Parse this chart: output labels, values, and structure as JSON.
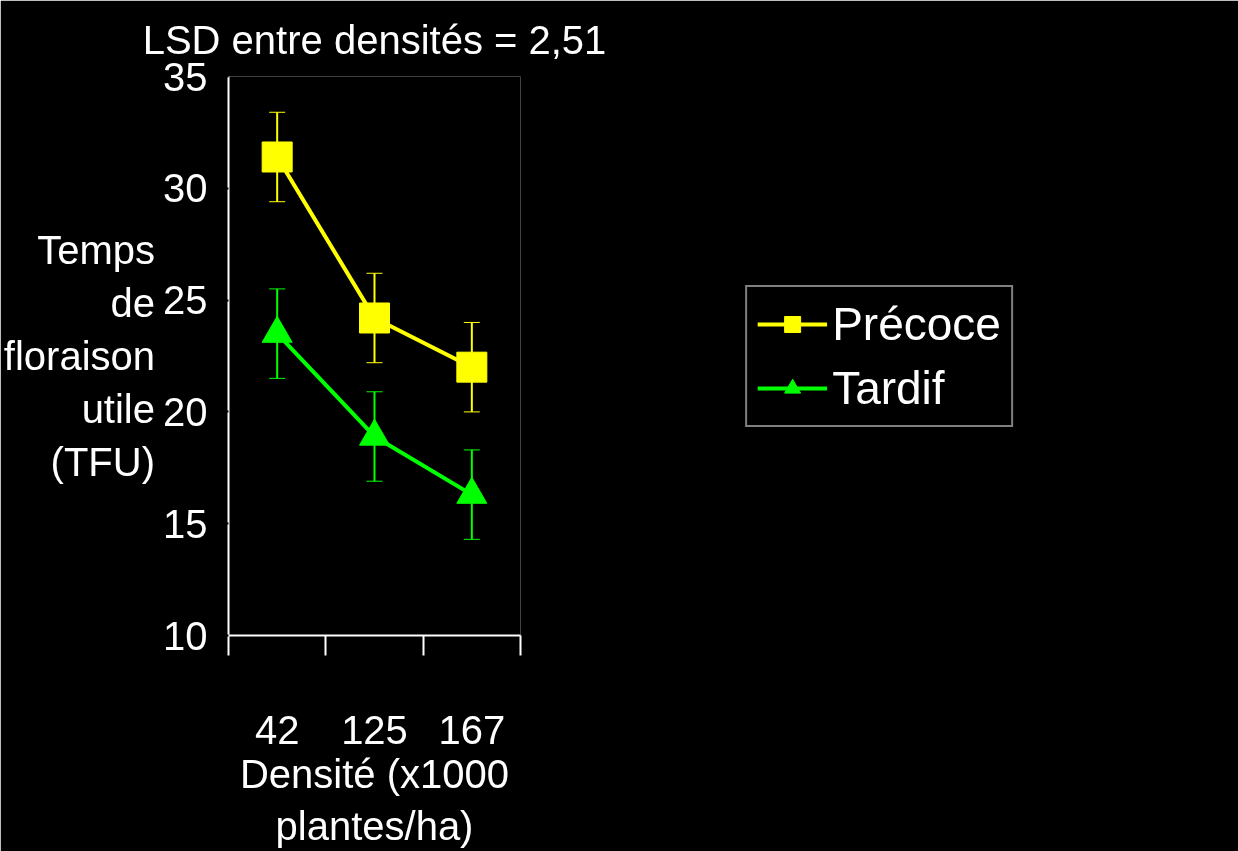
{
  "chart_data": {
    "type": "line",
    "title": "LSD entre densités = 2,51",
    "xlabel": "Densité (x1000\nplantes/ha)",
    "ylabel": "Temps\nde\nfloraison\nutile\n(TFU)",
    "categories": [
      "42",
      "125",
      "167"
    ],
    "series": [
      {
        "name": "Précoce",
        "color": "#ffff00",
        "marker": "square",
        "values": [
          31.4,
          24.2,
          22.0
        ],
        "errors": [
          2,
          2,
          2
        ]
      },
      {
        "name": "Tardif",
        "color": "#00ff00",
        "marker": "triangle",
        "values": [
          23.5,
          18.9,
          16.3
        ],
        "errors": [
          2,
          2,
          2
        ]
      }
    ],
    "ylim": [
      10,
      35
    ],
    "yticks": [
      10,
      15,
      20,
      25,
      30,
      35
    ],
    "grid": false,
    "legend": "right"
  }
}
